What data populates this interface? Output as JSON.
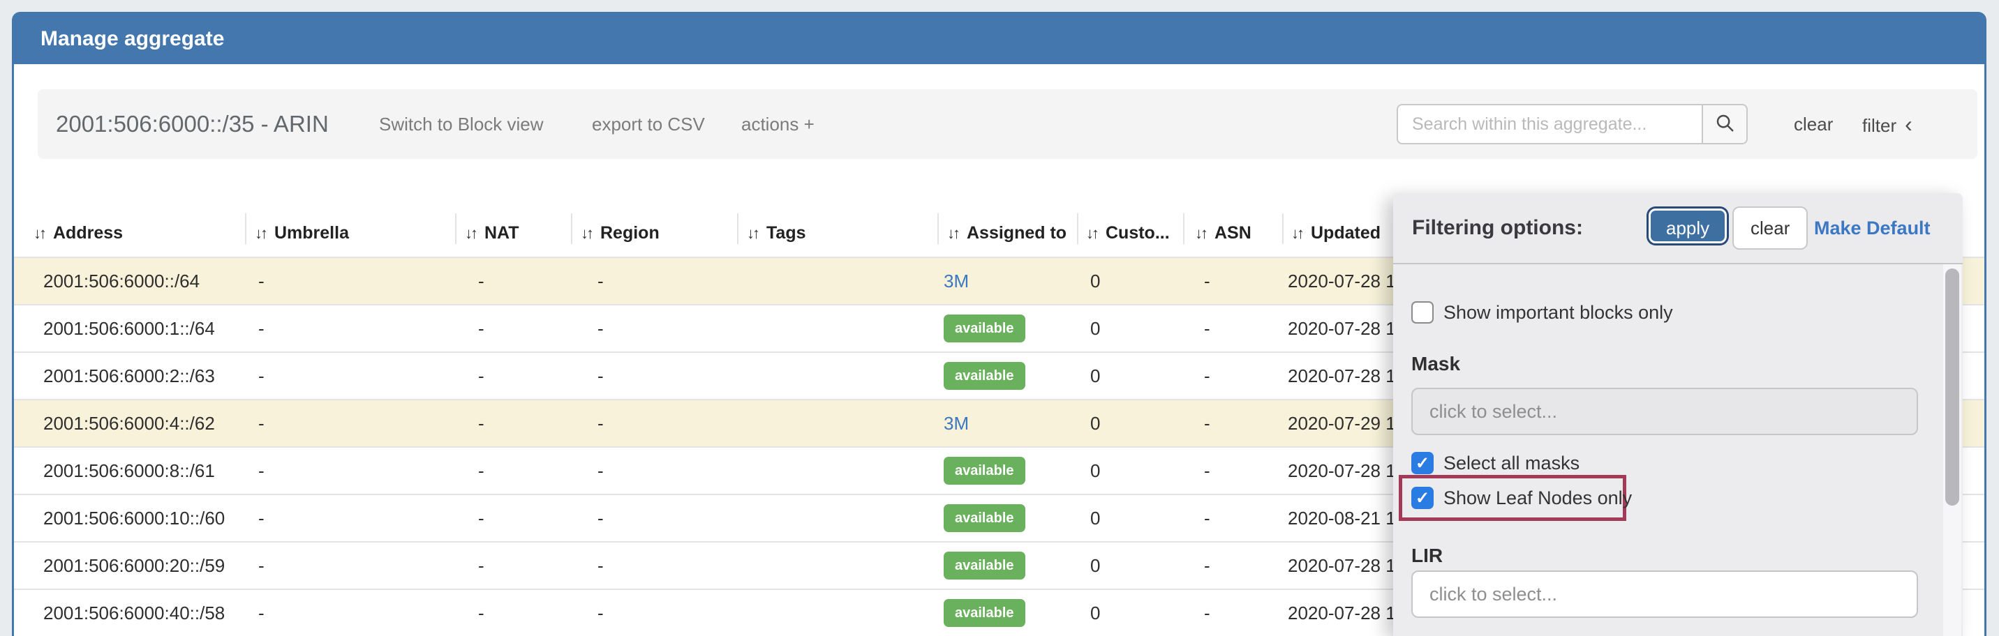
{
  "header": {
    "title": "Manage aggregate"
  },
  "toolbar": {
    "aggregate_title": "2001:506:6000::/35 - ARIN",
    "switch_view": "Switch to Block view",
    "export_csv": "export to CSV",
    "actions": "actions +",
    "search": {
      "placeholder": "Search within this aggregate..."
    },
    "clear": "clear",
    "filter": "filter",
    "filter_chevron": "‹"
  },
  "table": {
    "columns": [
      {
        "key": "address",
        "label": "Address"
      },
      {
        "key": "umbrella",
        "label": "Umbrella"
      },
      {
        "key": "nat",
        "label": "NAT"
      },
      {
        "key": "region",
        "label": "Region"
      },
      {
        "key": "tags",
        "label": "Tags"
      },
      {
        "key": "assigned",
        "label": "Assigned to"
      },
      {
        "key": "customers",
        "label": "Custo..."
      },
      {
        "key": "asn",
        "label": "ASN"
      },
      {
        "key": "updated",
        "label": "Updated"
      }
    ],
    "rows": [
      {
        "address": "2001:506:6000::/64",
        "umbrella": "-",
        "nat": "-",
        "region": "-",
        "tags": "",
        "assigned": {
          "type": "link",
          "text": "3M"
        },
        "customers": "0",
        "asn": "-",
        "updated": "2020-07-28 1",
        "highlighted": true
      },
      {
        "address": "2001:506:6000:1::/64",
        "umbrella": "-",
        "nat": "-",
        "region": "-",
        "tags": "",
        "assigned": {
          "type": "badge",
          "text": "available"
        },
        "customers": "0",
        "asn": "-",
        "updated": "2020-07-28 1",
        "highlighted": false
      },
      {
        "address": "2001:506:6000:2::/63",
        "umbrella": "-",
        "nat": "-",
        "region": "-",
        "tags": "",
        "assigned": {
          "type": "badge",
          "text": "available"
        },
        "customers": "0",
        "asn": "-",
        "updated": "2020-07-28 1",
        "highlighted": false
      },
      {
        "address": "2001:506:6000:4::/62",
        "umbrella": "-",
        "nat": "-",
        "region": "-",
        "tags": "",
        "assigned": {
          "type": "link",
          "text": "3M"
        },
        "customers": "0",
        "asn": "-",
        "updated": "2020-07-29 1",
        "highlighted": true
      },
      {
        "address": "2001:506:6000:8::/61",
        "umbrella": "-",
        "nat": "-",
        "region": "-",
        "tags": "",
        "assigned": {
          "type": "badge",
          "text": "available"
        },
        "customers": "0",
        "asn": "-",
        "updated": "2020-07-28 1",
        "highlighted": false
      },
      {
        "address": "2001:506:6000:10::/60",
        "umbrella": "-",
        "nat": "-",
        "region": "-",
        "tags": "",
        "assigned": {
          "type": "badge",
          "text": "available"
        },
        "customers": "0",
        "asn": "-",
        "updated": "2020-08-21 1",
        "highlighted": false
      },
      {
        "address": "2001:506:6000:20::/59",
        "umbrella": "-",
        "nat": "-",
        "region": "-",
        "tags": "",
        "assigned": {
          "type": "badge",
          "text": "available"
        },
        "customers": "0",
        "asn": "-",
        "updated": "2020-07-28 1",
        "highlighted": false
      },
      {
        "address": "2001:506:6000:40::/58",
        "umbrella": "-",
        "nat": "-",
        "region": "-",
        "tags": "",
        "assigned": {
          "type": "badge",
          "text": "available"
        },
        "customers": "0",
        "asn": "-",
        "updated": "2020-07-28 1",
        "highlighted": false
      }
    ]
  },
  "filter_panel": {
    "title": "Filtering options:",
    "apply": "apply",
    "clear": "clear",
    "make_default": "Make Default",
    "show_important": {
      "label": "Show important blocks only",
      "checked": false
    },
    "mask": {
      "label": "Mask",
      "placeholder": "click to select..."
    },
    "select_all_masks": {
      "label": "Select all masks",
      "checked": true
    },
    "leaf_nodes": {
      "label": "Show Leaf Nodes only",
      "checked": true,
      "highlighted": true
    },
    "lir": {
      "label": "LIR",
      "placeholder": "click to select..."
    }
  },
  "icons": {
    "sort": "↓↑",
    "check": "✓",
    "chevron_left": "‹",
    "search": "magnifier"
  },
  "colors": {
    "header_blue": "#4377ae",
    "row_highlight_cream": "#f7f2d9",
    "badge_green": "#69b15c",
    "link_blue": "#3c78c0",
    "annotation_maroon": "#a23a58",
    "checkbox_blue": "#2b7ce2"
  }
}
